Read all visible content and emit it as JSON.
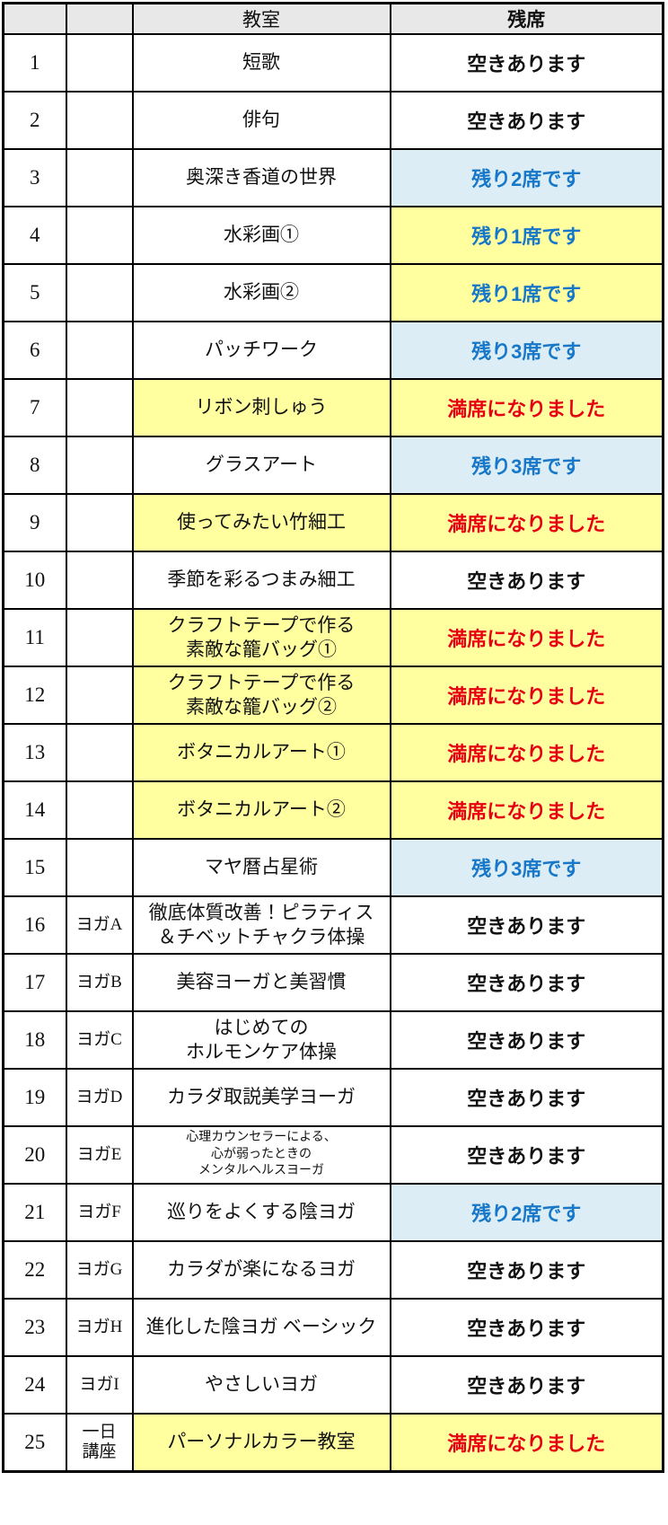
{
  "colors": {
    "header_bg": "#e8e8e8",
    "yellow": "#ffffa0",
    "light_blue": "#dcedf5",
    "blue_text": "#1777c8",
    "red_text": "#e60012",
    "border": "#000000"
  },
  "table": {
    "headers": [
      "",
      "",
      "教室",
      "残席"
    ],
    "rows": [
      {
        "no": "1",
        "category_lines": [],
        "name_lines": [
          "短歌"
        ],
        "name_bg": "white",
        "name_size": "normal",
        "status": "空きあります",
        "status_style": "open"
      },
      {
        "no": "2",
        "category_lines": [],
        "name_lines": [
          "俳句"
        ],
        "name_bg": "white",
        "name_size": "normal",
        "status": "空きあります",
        "status_style": "open"
      },
      {
        "no": "3",
        "category_lines": [],
        "name_lines": [
          "奥深き香道の世界"
        ],
        "name_bg": "white",
        "name_size": "normal",
        "status": "残り2席です",
        "status_style": "low-blue"
      },
      {
        "no": "4",
        "category_lines": [],
        "name_lines": [
          "水彩画①"
        ],
        "name_bg": "white",
        "name_size": "normal",
        "status": "残り1席です",
        "status_style": "low-yellow"
      },
      {
        "no": "5",
        "category_lines": [],
        "name_lines": [
          "水彩画②"
        ],
        "name_bg": "white",
        "name_size": "normal",
        "status": "残り1席です",
        "status_style": "low-yellow"
      },
      {
        "no": "6",
        "category_lines": [],
        "name_lines": [
          "パッチワーク"
        ],
        "name_bg": "white",
        "name_size": "normal",
        "status": "残り3席です",
        "status_style": "low-blue"
      },
      {
        "no": "7",
        "category_lines": [],
        "name_lines": [
          "リボン刺しゅう"
        ],
        "name_bg": "yellow",
        "name_size": "normal",
        "status": "満席になりました",
        "status_style": "full"
      },
      {
        "no": "8",
        "category_lines": [],
        "name_lines": [
          "グラスアート"
        ],
        "name_bg": "white",
        "name_size": "normal",
        "status": "残り3席です",
        "status_style": "low-blue"
      },
      {
        "no": "9",
        "category_lines": [],
        "name_lines": [
          "使ってみたい竹細工"
        ],
        "name_bg": "yellow",
        "name_size": "normal",
        "status": "満席になりました",
        "status_style": "full"
      },
      {
        "no": "10",
        "category_lines": [],
        "name_lines": [
          "季節を彩るつまみ細工"
        ],
        "name_bg": "white",
        "name_size": "normal",
        "status": "空きあります",
        "status_style": "open"
      },
      {
        "no": "11",
        "category_lines": [],
        "name_lines": [
          "クラフトテープで作る",
          "素敵な籠バッグ①"
        ],
        "name_bg": "yellow",
        "name_size": "normal",
        "status": "満席になりました",
        "status_style": "full"
      },
      {
        "no": "12",
        "category_lines": [],
        "name_lines": [
          "クラフトテープで作る",
          "素敵な籠バッグ②"
        ],
        "name_bg": "yellow",
        "name_size": "normal",
        "status": "満席になりました",
        "status_style": "full"
      },
      {
        "no": "13",
        "category_lines": [],
        "name_lines": [
          "ボタニカルアート①"
        ],
        "name_bg": "yellow",
        "name_size": "normal",
        "status": "満席になりました",
        "status_style": "full"
      },
      {
        "no": "14",
        "category_lines": [],
        "name_lines": [
          "ボタニカルアート②"
        ],
        "name_bg": "yellow",
        "name_size": "normal",
        "status": "満席になりました",
        "status_style": "full"
      },
      {
        "no": "15",
        "category_lines": [],
        "name_lines": [
          "マヤ暦占星術"
        ],
        "name_bg": "white",
        "name_size": "normal",
        "status": "残り3席です",
        "status_style": "low-blue"
      },
      {
        "no": "16",
        "category_lines": [
          "ヨガA"
        ],
        "name_lines": [
          "徹底体質改善！ピラティス",
          "＆チベットチャクラ体操"
        ],
        "name_bg": "white",
        "name_size": "normal",
        "status": "空きあります",
        "status_style": "open"
      },
      {
        "no": "17",
        "category_lines": [
          "ヨガB"
        ],
        "name_lines": [
          "美容ヨーガと美習慣"
        ],
        "name_bg": "white",
        "name_size": "normal",
        "status": "空きあります",
        "status_style": "open"
      },
      {
        "no": "18",
        "category_lines": [
          "ヨガC"
        ],
        "name_lines": [
          "はじめての",
          "ホルモンケア体操"
        ],
        "name_bg": "white",
        "name_size": "normal",
        "status": "空きあります",
        "status_style": "open"
      },
      {
        "no": "19",
        "category_lines": [
          "ヨガD"
        ],
        "name_lines": [
          "カラダ取説美学ヨーガ"
        ],
        "name_bg": "white",
        "name_size": "normal",
        "status": "空きあります",
        "status_style": "open"
      },
      {
        "no": "20",
        "category_lines": [
          "ヨガE"
        ],
        "name_lines": [
          "心理カウンセラーによる、",
          "心が弱ったときの",
          "メンタルヘルスヨーガ"
        ],
        "name_bg": "white",
        "name_size": "small",
        "status": "空きあります",
        "status_style": "open"
      },
      {
        "no": "21",
        "category_lines": [
          "ヨガF"
        ],
        "name_lines": [
          "巡りをよくする陰ヨガ"
        ],
        "name_bg": "white",
        "name_size": "normal",
        "status": "残り2席です",
        "status_style": "low-blue"
      },
      {
        "no": "22",
        "category_lines": [
          "ヨガG"
        ],
        "name_lines": [
          "カラダが楽になるヨガ"
        ],
        "name_bg": "white",
        "name_size": "normal",
        "status": "空きあります",
        "status_style": "open"
      },
      {
        "no": "23",
        "category_lines": [
          "ヨガH"
        ],
        "name_lines": [
          "進化した陰ヨガ ベーシック"
        ],
        "name_bg": "white",
        "name_size": "normal",
        "status": "空きあります",
        "status_style": "open"
      },
      {
        "no": "24",
        "category_lines": [
          "ヨガI"
        ],
        "name_lines": [
          "やさしいヨガ"
        ],
        "name_bg": "white",
        "name_size": "normal",
        "status": "空きあります",
        "status_style": "open"
      },
      {
        "no": "25",
        "category_lines": [
          "一日",
          "講座"
        ],
        "name_lines": [
          "パーソナルカラー教室"
        ],
        "name_bg": "yellow",
        "name_size": "normal",
        "status": "満席になりました",
        "status_style": "full"
      }
    ]
  },
  "chart_data": {
    "type": "table",
    "title": "",
    "columns": [
      "",
      "",
      "教室",
      "残席"
    ],
    "rows": [
      [
        "1",
        "",
        "短歌",
        "空きあります"
      ],
      [
        "2",
        "",
        "俳句",
        "空きあります"
      ],
      [
        "3",
        "",
        "奥深き香道の世界",
        "残り2席です"
      ],
      [
        "4",
        "",
        "水彩画①",
        "残り1席です"
      ],
      [
        "5",
        "",
        "水彩画②",
        "残り1席です"
      ],
      [
        "6",
        "",
        "パッチワーク",
        "残り3席です"
      ],
      [
        "7",
        "",
        "リボン刺しゅう",
        "満席になりました"
      ],
      [
        "8",
        "",
        "グラスアート",
        "残り3席です"
      ],
      [
        "9",
        "",
        "使ってみたい竹細工",
        "満席になりました"
      ],
      [
        "10",
        "",
        "季節を彩るつまみ細工",
        "空きあります"
      ],
      [
        "11",
        "",
        "クラフトテープで作る 素敵な籠バッグ①",
        "満席になりました"
      ],
      [
        "12",
        "",
        "クラフトテープで作る 素敵な籠バッグ②",
        "満席になりました"
      ],
      [
        "13",
        "",
        "ボタニカルアート①",
        "満席になりました"
      ],
      [
        "14",
        "",
        "ボタニカルアート②",
        "満席になりました"
      ],
      [
        "15",
        "",
        "マヤ暦占星術",
        "残り3席です"
      ],
      [
        "16",
        "ヨガA",
        "徹底体質改善！ピラティス＆チベットチャクラ体操",
        "空きあります"
      ],
      [
        "17",
        "ヨガB",
        "美容ヨーガと美習慣",
        "空きあります"
      ],
      [
        "18",
        "ヨガC",
        "はじめてのホルモンケア体操",
        "空きあります"
      ],
      [
        "19",
        "ヨガD",
        "カラダ取説美学ヨーガ",
        "空きあります"
      ],
      [
        "20",
        "ヨガE",
        "心理カウンセラーによる、心が弱ったときのメンタルヘルスヨーガ",
        "空きあります"
      ],
      [
        "21",
        "ヨガF",
        "巡りをよくする陰ヨガ",
        "残り2席です"
      ],
      [
        "22",
        "ヨガG",
        "カラダが楽になるヨガ",
        "空きあります"
      ],
      [
        "23",
        "ヨガH",
        "進化した陰ヨガ ベーシック",
        "空きあります"
      ],
      [
        "24",
        "ヨガI",
        "やさしいヨガ",
        "空きあります"
      ],
      [
        "25",
        "一日講座",
        "パーソナルカラー教室",
        "満席になりました"
      ]
    ]
  }
}
